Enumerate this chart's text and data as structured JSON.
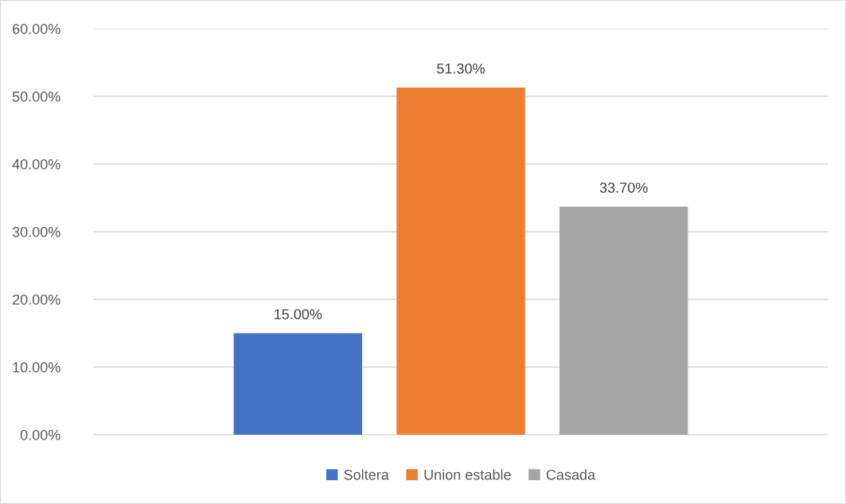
{
  "chart_data": {
    "type": "bar",
    "categories": [
      null
    ],
    "series": [
      {
        "name": "Soltera",
        "color": "#4472c4",
        "values": [
          15.0
        ],
        "value_labels": [
          "15.00%"
        ]
      },
      {
        "name": "Union estable",
        "color": "#ed7d31",
        "values": [
          51.3
        ],
        "value_labels": [
          "51.30%"
        ]
      },
      {
        "name": "Casada",
        "color": "#a5a5a5",
        "values": [
          33.7
        ],
        "value_labels": [
          "33.70%"
        ]
      }
    ],
    "ylim": [
      0,
      60
    ],
    "yticks": [
      {
        "value": 0,
        "label": "0.00%"
      },
      {
        "value": 10,
        "label": "10.00%"
      },
      {
        "value": 20,
        "label": "20.00%"
      },
      {
        "value": 30,
        "label": "30.00%"
      },
      {
        "value": 40,
        "label": "40.00%"
      },
      {
        "value": 50,
        "label": "50.00%"
      },
      {
        "value": 60,
        "label": "60.00%"
      }
    ],
    "grid": "y",
    "legend": "bottom"
  }
}
